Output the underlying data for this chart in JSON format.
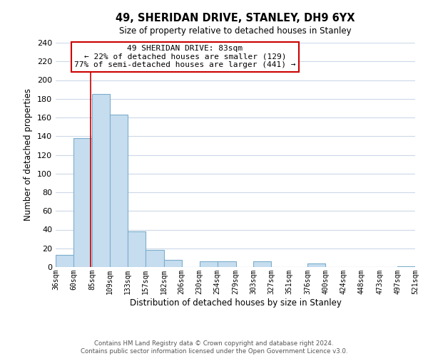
{
  "title": "49, SHERIDAN DRIVE, STANLEY, DH9 6YX",
  "subtitle": "Size of property relative to detached houses in Stanley",
  "xlabel": "Distribution of detached houses by size in Stanley",
  "ylabel": "Number of detached properties",
  "bar_edges": [
    36,
    60,
    85,
    109,
    133,
    157,
    182,
    206,
    230,
    254,
    279,
    303,
    327,
    351,
    376,
    400,
    424,
    448,
    473,
    497,
    521
  ],
  "bar_heights": [
    13,
    138,
    185,
    163,
    38,
    18,
    8,
    0,
    6,
    6,
    0,
    6,
    0,
    0,
    4,
    0,
    0,
    0,
    0,
    1
  ],
  "bar_color": "#c6ddef",
  "bar_edge_color": "#7aaecb",
  "ylim": [
    0,
    240
  ],
  "yticks": [
    0,
    20,
    40,
    60,
    80,
    100,
    120,
    140,
    160,
    180,
    200,
    220,
    240
  ],
  "property_line_x": 83,
  "property_line_color": "#cc0000",
  "annotation_text_line1": "49 SHERIDAN DRIVE: 83sqm",
  "annotation_text_line2": "← 22% of detached houses are smaller (129)",
  "annotation_text_line3": "77% of semi-detached houses are larger (441) →",
  "annotation_box_color": "#cc0000",
  "footer_line1": "Contains HM Land Registry data © Crown copyright and database right 2024.",
  "footer_line2": "Contains public sector information licensed under the Open Government Licence v3.0.",
  "tick_labels": [
    "36sqm",
    "60sqm",
    "85sqm",
    "109sqm",
    "133sqm",
    "157sqm",
    "182sqm",
    "206sqm",
    "230sqm",
    "254sqm",
    "279sqm",
    "303sqm",
    "327sqm",
    "351sqm",
    "376sqm",
    "400sqm",
    "424sqm",
    "448sqm",
    "473sqm",
    "497sqm",
    "521sqm"
  ],
  "background_color": "#ffffff",
  "grid_color": "#ccd8e8"
}
